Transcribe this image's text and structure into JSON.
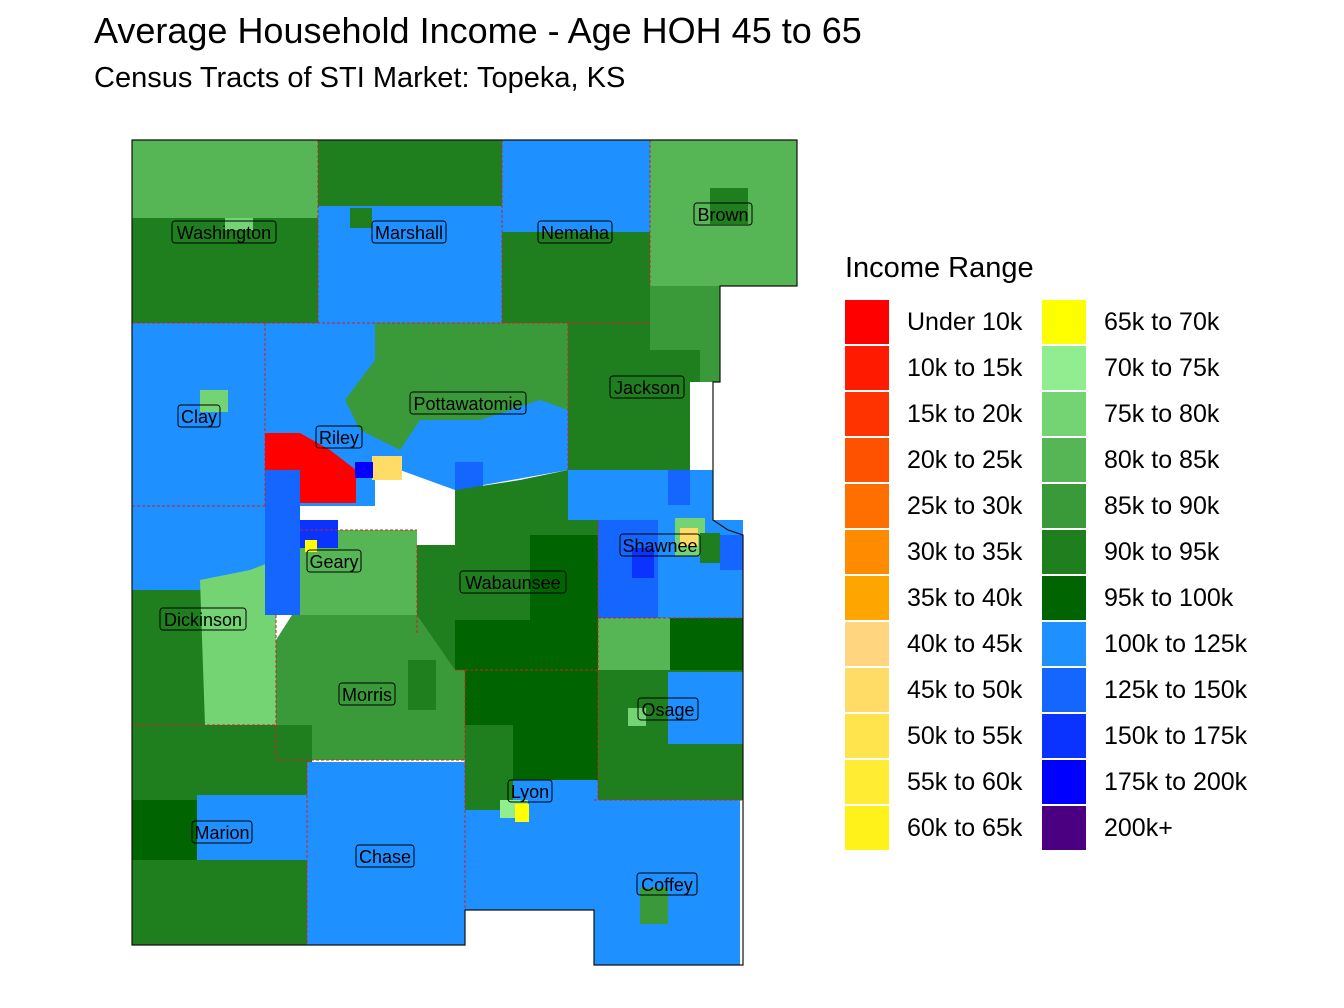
{
  "title": "Average Household Income - Age HOH 45 to 65",
  "subtitle": "Census Tracts of STI Market: Topeka, KS",
  "legend": {
    "title": "Income Range",
    "items": [
      {
        "label": "Under 10k",
        "color": "#ff0000"
      },
      {
        "label": "10k to 15k",
        "color": "#ff1a00"
      },
      {
        "label": "15k to 20k",
        "color": "#ff3300"
      },
      {
        "label": "20k to 25k",
        "color": "#ff5200"
      },
      {
        "label": "25k to 30k",
        "color": "#ff6f00"
      },
      {
        "label": "30k to 35k",
        "color": "#ff8c00"
      },
      {
        "label": "35k to 40k",
        "color": "#ffa500"
      },
      {
        "label": "40k to 45k",
        "color": "#ffd580"
      },
      {
        "label": "45k to 50k",
        "color": "#ffdc66"
      },
      {
        "label": "50k to 55k",
        "color": "#ffe44d"
      },
      {
        "label": "55k to 60k",
        "color": "#ffec33"
      },
      {
        "label": "60k to 65k",
        "color": "#fff21a"
      },
      {
        "label": "65k to 70k",
        "color": "#ffff00"
      },
      {
        "label": "70k to 75k",
        "color": "#90ee90"
      },
      {
        "label": "75k to 80k",
        "color": "#74d474"
      },
      {
        "label": "80k to 85k",
        "color": "#56b656"
      },
      {
        "label": "85k to 90k",
        "color": "#3a9a3a"
      },
      {
        "label": "90k to 95k",
        "color": "#1f7f1f"
      },
      {
        "label": "95k to 100k",
        "color": "#006400"
      },
      {
        "label": "100k to 125k",
        "color": "#1e90ff"
      },
      {
        "label": "125k to 150k",
        "color": "#1565ff"
      },
      {
        "label": "150k to 175k",
        "color": "#0a33ff"
      },
      {
        "label": "175k to 200k",
        "color": "#0000ff"
      },
      {
        "label": "200k+",
        "color": "#4b0082"
      }
    ]
  },
  "counties": [
    {
      "name": "Washington"
    },
    {
      "name": "Marshall"
    },
    {
      "name": "Nemaha"
    },
    {
      "name": "Brown"
    },
    {
      "name": "Clay"
    },
    {
      "name": "Pottawatomie"
    },
    {
      "name": "Jackson"
    },
    {
      "name": "Riley"
    },
    {
      "name": "Shawnee"
    },
    {
      "name": "Geary"
    },
    {
      "name": "Wabaunsee"
    },
    {
      "name": "Dickinson"
    },
    {
      "name": "Morris"
    },
    {
      "name": "Osage"
    },
    {
      "name": "Lyon"
    },
    {
      "name": "Marion"
    },
    {
      "name": "Chase"
    },
    {
      "name": "Coffey"
    }
  ]
}
